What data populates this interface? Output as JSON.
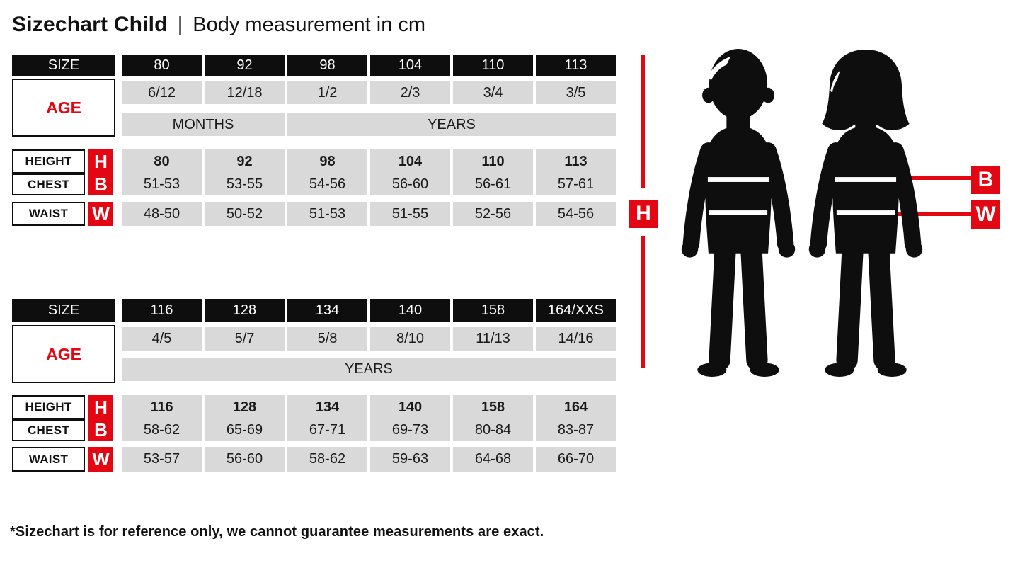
{
  "page": {
    "title_bold": "Sizechart Child",
    "title_separator": "|",
    "title_rest": "Body measurement in cm",
    "footnote": "*Sizechart is for reference only, we cannot guarantee measurements are exact."
  },
  "colors": {
    "accent_red": "#e30613",
    "cell_gray": "#d9d9d9",
    "cell_black": "#0e0e0e"
  },
  "tables": [
    {
      "size_label": "SIZE",
      "age_label": "AGE",
      "sizes": [
        "80",
        "92",
        "98",
        "104",
        "110",
        "113"
      ],
      "ages": [
        "6/12",
        "12/18",
        "1/2",
        "2/3",
        "3/4",
        "3/5"
      ],
      "units": [
        {
          "label": "MONTHS",
          "span": 2
        },
        {
          "label": "YEARS",
          "span": 4
        }
      ],
      "rows": [
        {
          "label": "HEIGHT",
          "letter": "H",
          "bold": true,
          "values": [
            "80",
            "92",
            "98",
            "104",
            "110",
            "113"
          ]
        },
        {
          "label": "CHEST",
          "letter": "B",
          "bold": false,
          "values": [
            "51-53",
            "53-55",
            "54-56",
            "56-60",
            "56-61",
            "57-61"
          ]
        },
        {
          "label": "WAIST",
          "letter": "W",
          "bold": false,
          "values": [
            "48-50",
            "50-52",
            "51-53",
            "51-55",
            "52-56",
            "54-56"
          ]
        }
      ]
    },
    {
      "size_label": "SIZE",
      "age_label": "AGE",
      "sizes": [
        "116",
        "128",
        "134",
        "140",
        "158",
        "164/XXS"
      ],
      "ages": [
        "4/5",
        "5/7",
        "5/8",
        "8/10",
        "11/13",
        "14/16"
      ],
      "units": [
        {
          "label": "YEARS",
          "span": 6
        }
      ],
      "rows": [
        {
          "label": "HEIGHT",
          "letter": "H",
          "bold": true,
          "values": [
            "116",
            "128",
            "134",
            "140",
            "158",
            "164"
          ]
        },
        {
          "label": "CHEST",
          "letter": "B",
          "bold": false,
          "values": [
            "58-62",
            "65-69",
            "67-71",
            "69-73",
            "80-84",
            "83-87"
          ]
        },
        {
          "label": "WAIST",
          "letter": "W",
          "bold": false,
          "values": [
            "53-57",
            "56-60",
            "58-62",
            "59-63",
            "64-68",
            "66-70"
          ]
        }
      ]
    }
  ],
  "diagram": {
    "height_label": "H",
    "chest_label": "B",
    "waist_label": "W"
  }
}
